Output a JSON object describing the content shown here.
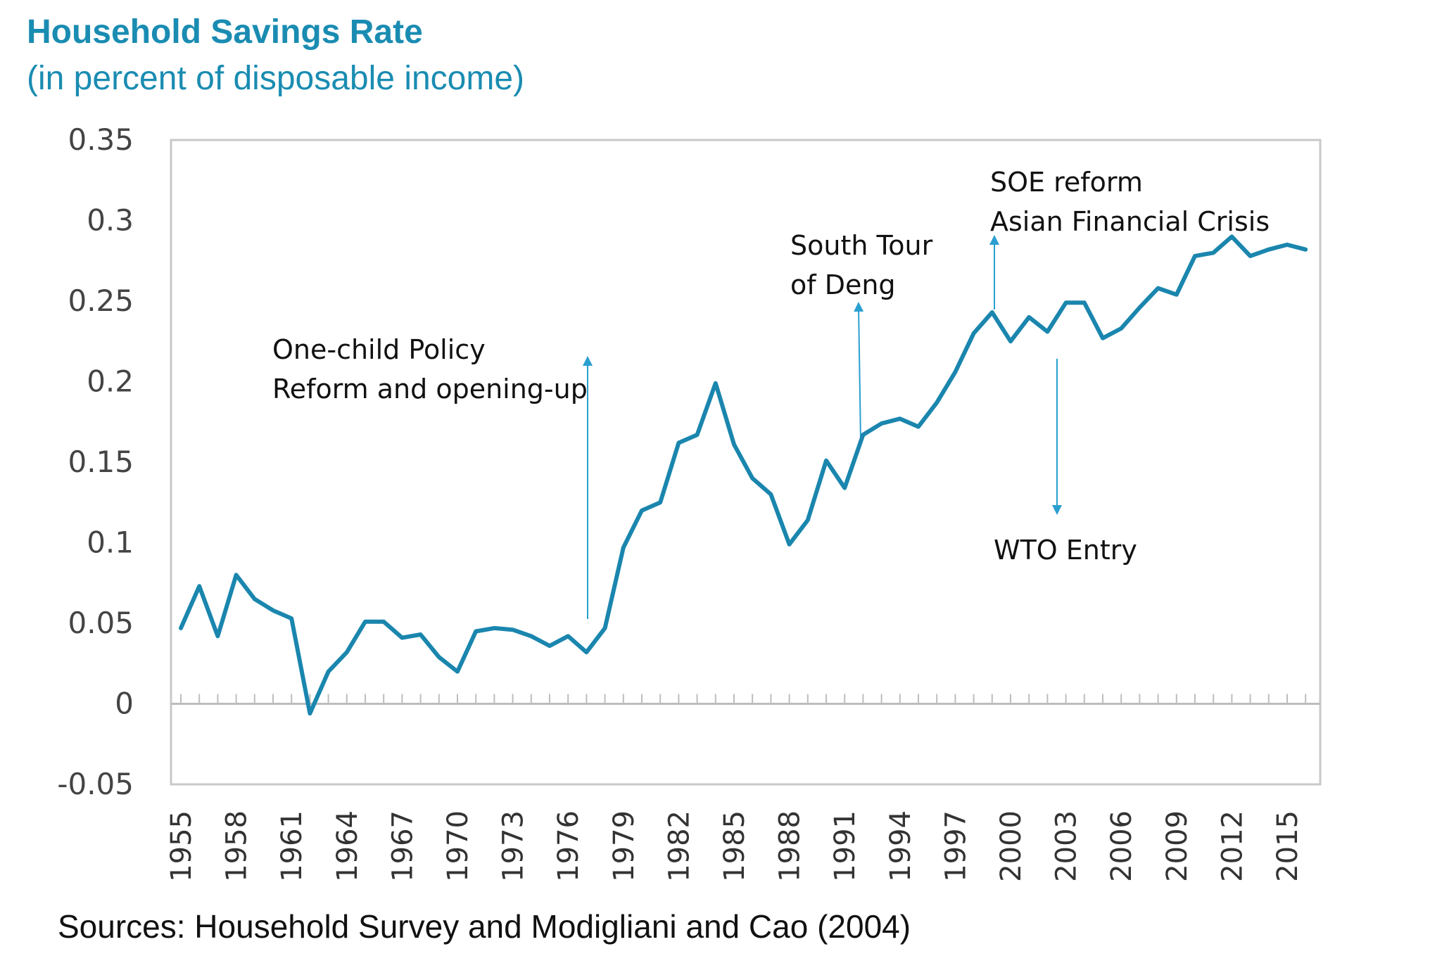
{
  "chart_data": {
    "type": "line",
    "title": "Household Savings Rate",
    "subtitle": "(in percent of disposable income)",
    "source": "Sources: Household Survey and Modigliani and Cao (2004)",
    "xlabel": "",
    "ylabel": "",
    "ylim": [
      -0.05,
      0.35
    ],
    "yticks": [
      "0.35",
      "0.3",
      "0.25",
      "0.2",
      "0.15",
      "0.1",
      "0.05",
      "0",
      "-0.05"
    ],
    "xticks": [
      "1955",
      "1958",
      "1961",
      "1964",
      "1967",
      "1970",
      "1973",
      "1976",
      "1979",
      "1982",
      "1985",
      "1988",
      "1991",
      "1994",
      "1997",
      "2000",
      "2003",
      "2006",
      "2009",
      "2012",
      "2015"
    ],
    "grid": false,
    "legend": "none",
    "line_color": "#1a86ae",
    "x": [
      1955,
      1956,
      1957,
      1958,
      1959,
      1960,
      1961,
      1962,
      1963,
      1964,
      1965,
      1966,
      1967,
      1968,
      1969,
      1970,
      1971,
      1972,
      1973,
      1974,
      1975,
      1976,
      1977,
      1978,
      1979,
      1980,
      1981,
      1982,
      1983,
      1984,
      1985,
      1986,
      1987,
      1988,
      1989,
      1990,
      1991,
      1992,
      1993,
      1994,
      1995,
      1996,
      1997,
      1998,
      1999,
      2000,
      2001,
      2002,
      2003,
      2004,
      2005,
      2006,
      2007,
      2008,
      2009,
      2010,
      2011,
      2012,
      2013,
      2014,
      2015,
      2016
    ],
    "y": [
      0.047,
      0.073,
      0.042,
      0.08,
      0.065,
      0.058,
      0.053,
      -0.006,
      0.02,
      0.032,
      0.051,
      0.051,
      0.041,
      0.043,
      0.029,
      0.02,
      0.045,
      0.047,
      0.046,
      0.042,
      0.036,
      0.042,
      0.032,
      0.047,
      0.097,
      0.12,
      0.125,
      0.162,
      0.167,
      0.199,
      0.161,
      0.14,
      0.13,
      0.099,
      0.114,
      0.151,
      0.134,
      0.167,
      0.174,
      0.177,
      0.172,
      0.187,
      0.206,
      0.23,
      0.243,
      0.225,
      0.24,
      0.231,
      0.249,
      0.249,
      0.227,
      0.233,
      0.246,
      0.258,
      0.254,
      0.278,
      0.28,
      0.29,
      0.278,
      0.282,
      0.285,
      0.282
    ],
    "annotations": [
      {
        "lines": [
          "One-child Policy",
          "Reform and opening-up"
        ],
        "year": 1977,
        "direction": "up"
      },
      {
        "lines": [
          "South Tour",
          "of Deng"
        ],
        "year": 1992,
        "direction": "up"
      },
      {
        "lines": [
          "SOE reform",
          "Asian Financial Crisis"
        ],
        "year": 1999,
        "direction": "up"
      },
      {
        "lines": [
          "WTO Entry"
        ],
        "year": 2002,
        "direction": "down"
      }
    ]
  }
}
